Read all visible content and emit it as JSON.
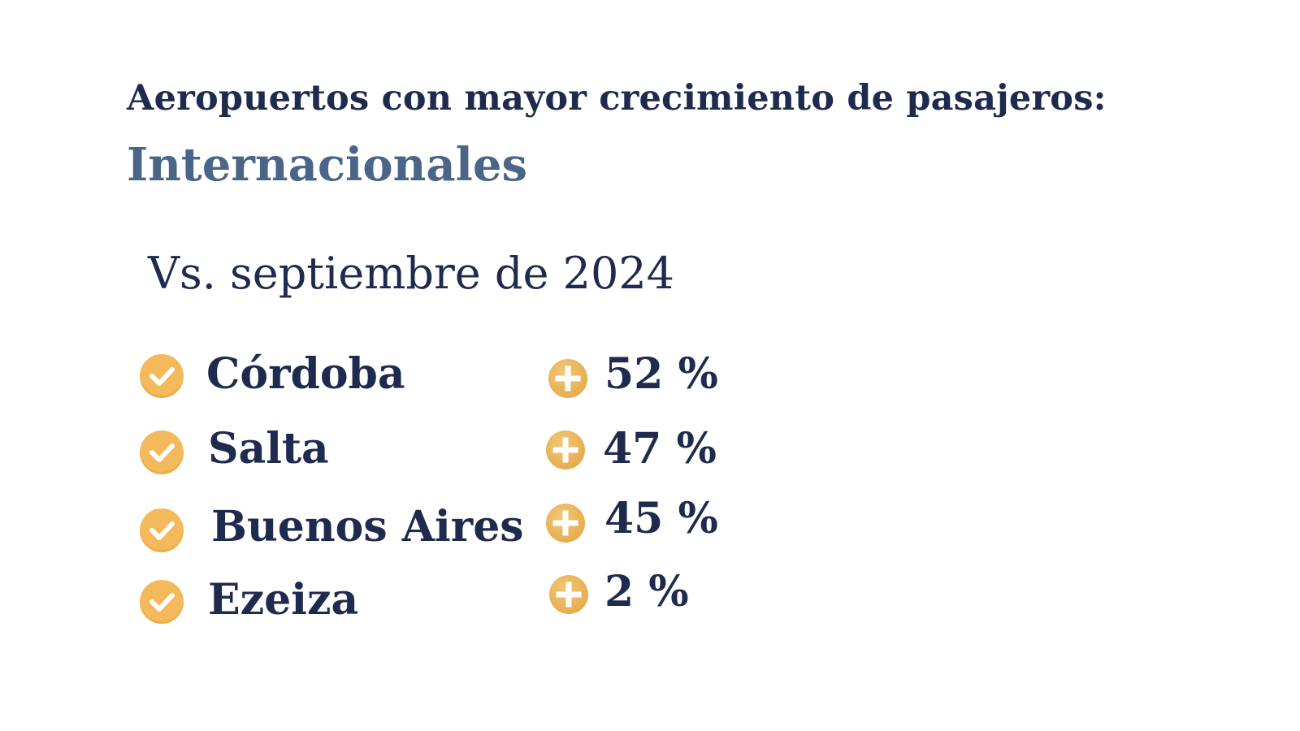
{
  "header": {
    "title": "Aeropuertos con mayor crecimiento de pasajeros:",
    "subtitle": "Internacionales",
    "comparison": "Vs. septiembre de 2024"
  },
  "airports": [
    {
      "name": "Córdoba",
      "growth": "52 %"
    },
    {
      "name": "Salta",
      "growth": "47 %"
    },
    {
      "name": "Buenos Aires",
      "growth": "45 %"
    },
    {
      "name": "Ezeiza",
      "growth": "2 %"
    }
  ],
  "icons": {
    "bullet": "check-circle-icon",
    "growth": "plus-circle-icon"
  },
  "colors": {
    "primary_text": "#1f2a4f",
    "accent_text": "#4a6587",
    "check_fill": "#f4b95a",
    "plus_fill": "#e6ae4f"
  }
}
